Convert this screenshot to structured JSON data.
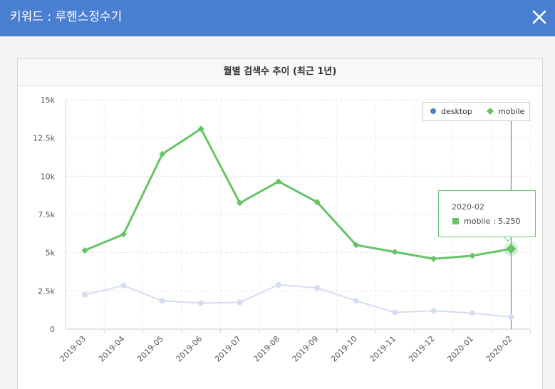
{
  "header": {
    "title": "키워드 : 루헨스정수기",
    "close_label": "close"
  },
  "panel": {
    "title": "월별 검색수 추이 (최근 1년)"
  },
  "colors": {
    "header_bg": "#4a7fd0",
    "mobile": "#66c466",
    "desktop": "#4a7fd0",
    "desktop_faded": "#d6dcf3",
    "crosshair": "#3a77d3"
  },
  "chart_data": {
    "type": "line",
    "title": "월별 검색수 추이 (최근 1년)",
    "categories": [
      "2019-03",
      "2019-04",
      "2019-05",
      "2019-06",
      "2019-07",
      "2019-08",
      "2019-09",
      "2019-10",
      "2019-11",
      "2019-12",
      "2020-01",
      "2020-02"
    ],
    "series": [
      {
        "name": "desktop",
        "marker": "circle",
        "faded": true,
        "values": [
          2250,
          2850,
          1850,
          1700,
          1750,
          2900,
          2700,
          1850,
          1100,
          1200,
          1050,
          800
        ]
      },
      {
        "name": "mobile",
        "marker": "diamond",
        "faded": false,
        "values": [
          5150,
          6200,
          11450,
          13100,
          8250,
          9650,
          8300,
          5500,
          5050,
          4600,
          4800,
          5250
        ]
      }
    ],
    "ylim": [
      0,
      15000
    ],
    "yticks": [
      0,
      2500,
      5000,
      7500,
      10000,
      12500,
      15000
    ],
    "ytick_labels": [
      "0",
      "2.5k",
      "5k",
      "7.5k",
      "10k",
      "12.5k",
      "15k"
    ],
    "grid": true,
    "legend": {
      "position": "top-right",
      "items": [
        "desktop",
        "mobile"
      ]
    },
    "highlight_index": 11,
    "tooltip": {
      "date": "2020-02",
      "series": "mobile",
      "value_text": "5,250"
    }
  }
}
